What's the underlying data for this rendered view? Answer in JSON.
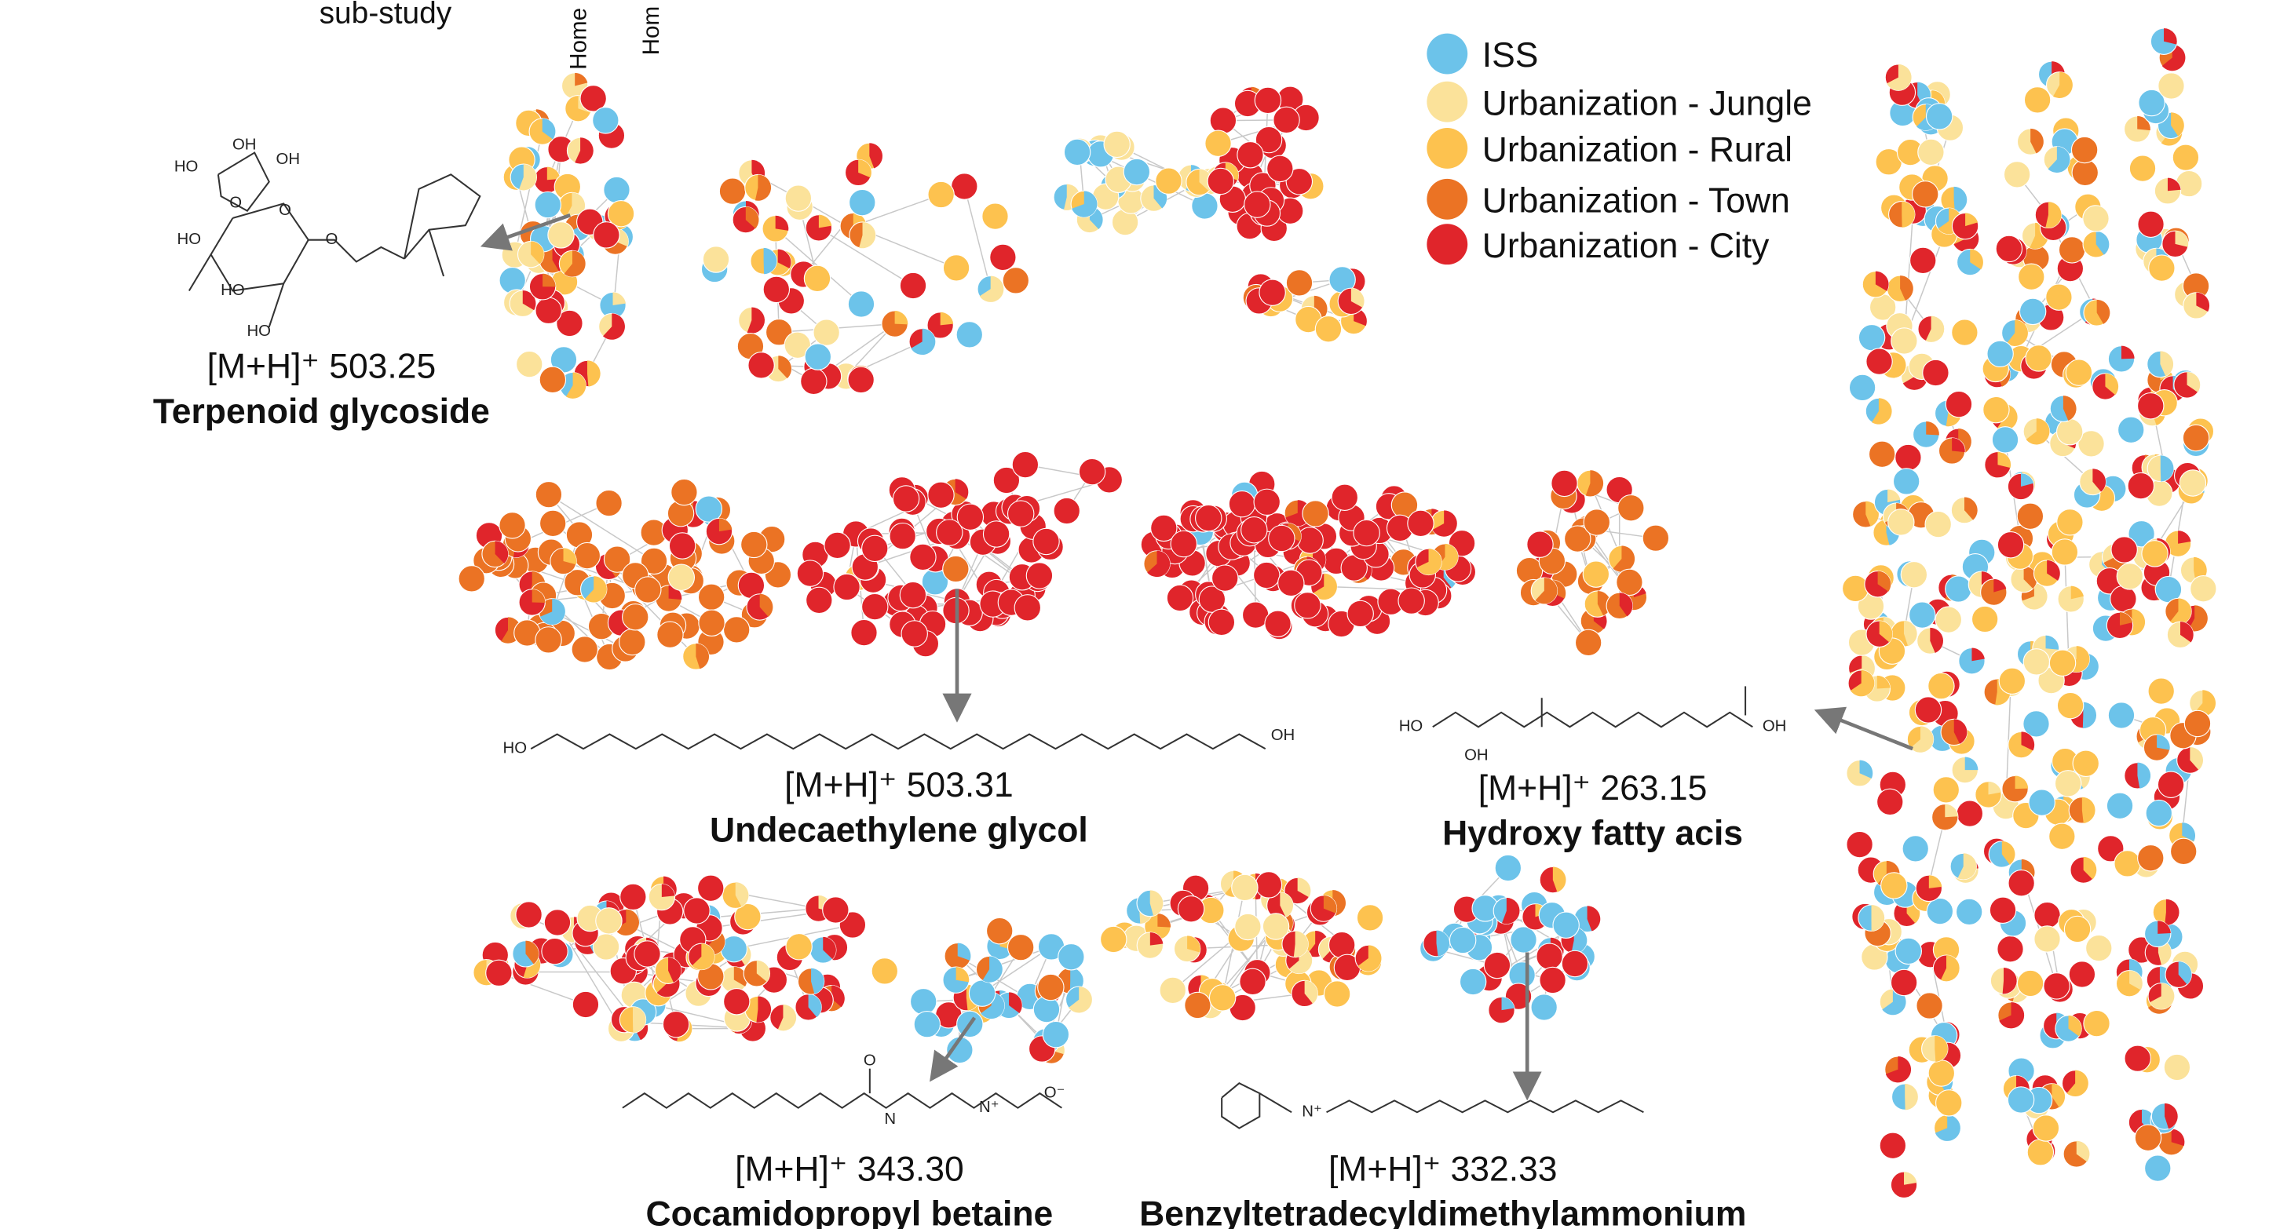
{
  "header": {
    "substudy": "sub-study",
    "columns": [
      "Home",
      "Hom"
    ]
  },
  "legend": [
    {
      "label": "ISS",
      "color": "#6cc3ea"
    },
    {
      "label": "Urbanization - Jungle",
      "color": "#fbe29a"
    },
    {
      "label": "Urbanization - Rural",
      "color": "#fdc24f"
    },
    {
      "label": "Urbanization - Town",
      "color": "#eb7324"
    },
    {
      "label": "Urbanization - City",
      "color": "#e0252b"
    }
  ],
  "compounds": [
    {
      "mass": "[M+H]⁺ 503.25",
      "name": "Terpenoid glycoside",
      "atoms": [
        "HO",
        "OH",
        "OH",
        "HO",
        "HO",
        "HO",
        "O",
        "O",
        "O"
      ]
    },
    {
      "mass": "[M+H]⁺ 503.31",
      "name": "Undecaethylene glycol",
      "atoms": [
        "HO",
        "OH"
      ]
    },
    {
      "mass": "[M+H]⁺ 263.15",
      "name": "Hydroxy fatty acis",
      "atoms": [
        "HO",
        "OH",
        "OH"
      ]
    },
    {
      "mass": "[M+H]⁺ 343.30",
      "name": "Cocamidopropyl betaine",
      "atoms": [
        "O",
        "N",
        "N⁺",
        "O⁻"
      ]
    },
    {
      "mass": "[M+H]⁺ 332.33",
      "name": "Benzyltetradecyldimethylammonium",
      "atoms": [
        "N⁺"
      ]
    }
  ]
}
